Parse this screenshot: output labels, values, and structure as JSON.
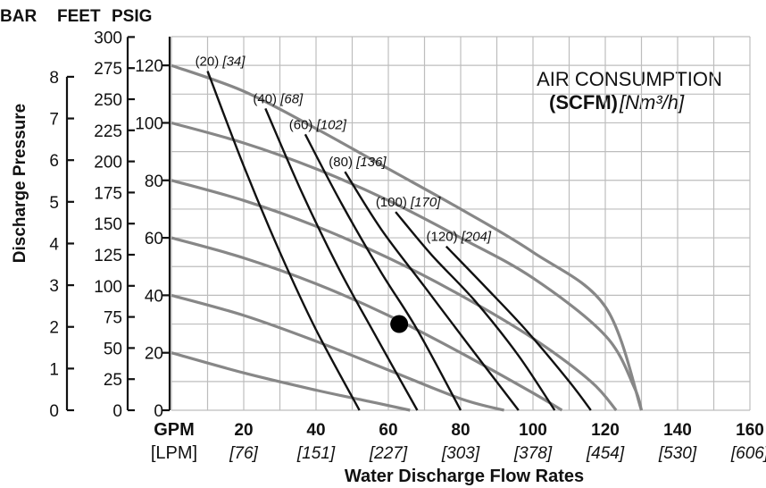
{
  "chart_data": {
    "type": "line",
    "title": "AIR CONSUMPTION",
    "title_units_bold": "(SCFM)",
    "title_units_metric": "[Nm³/h]",
    "xlabel": "Water Discharge Flow Rates",
    "ylabel": "Discharge Pressure",
    "x_unit_primary": "GPM",
    "x_unit_secondary": "[LPM]",
    "axis_headers": {
      "bar": "BAR",
      "feet": "FEET",
      "psig": "PSIG"
    },
    "xlim": [
      0,
      160
    ],
    "ylim_psig": [
      0,
      130
    ],
    "grid": true,
    "x_ticks": [
      {
        "gpm": 20,
        "gpm_label": "20",
        "lpm_label": "[76]"
      },
      {
        "gpm": 40,
        "gpm_label": "40",
        "lpm_label": "[151]"
      },
      {
        "gpm": 60,
        "gpm_label": "60",
        "lpm_label": "[227]"
      },
      {
        "gpm": 80,
        "gpm_label": "80",
        "lpm_label": "[303]"
      },
      {
        "gpm": 100,
        "gpm_label": "100",
        "lpm_label": "[378]"
      },
      {
        "gpm": 120,
        "gpm_label": "120",
        "lpm_label": "[454]"
      },
      {
        "gpm": 140,
        "gpm_label": "140",
        "lpm_label": "[530]"
      },
      {
        "gpm": 160,
        "gpm_label": "160",
        "lpm_label": "[606]"
      }
    ],
    "psig_ticks": [
      "0",
      "20",
      "40",
      "60",
      "80",
      "100",
      "120"
    ],
    "feet_ticks": [
      "0",
      "25",
      "50",
      "75",
      "100",
      "125",
      "150",
      "175",
      "200",
      "225",
      "250",
      "275",
      "300"
    ],
    "bar_ticks": [
      "0",
      "1",
      "2",
      "3",
      "4",
      "5",
      "6",
      "7",
      "8"
    ],
    "performance_curves": [
      {
        "inlet_psig": 20,
        "points": [
          [
            0,
            20
          ],
          [
            20,
            13
          ],
          [
            40,
            7
          ],
          [
            55,
            3
          ],
          [
            66,
            0
          ]
        ]
      },
      {
        "inlet_psig": 40,
        "points": [
          [
            0,
            40
          ],
          [
            20,
            33
          ],
          [
            40,
            24
          ],
          [
            60,
            14
          ],
          [
            80,
            4
          ],
          [
            92,
            0
          ]
        ]
      },
      {
        "inlet_psig": 60,
        "points": [
          [
            0,
            60
          ],
          [
            20,
            53
          ],
          [
            40,
            44
          ],
          [
            60,
            33
          ],
          [
            80,
            20
          ],
          [
            100,
            6
          ],
          [
            108,
            0
          ]
        ]
      },
      {
        "inlet_psig": 80,
        "points": [
          [
            0,
            80
          ],
          [
            20,
            73
          ],
          [
            40,
            64
          ],
          [
            60,
            53
          ],
          [
            80,
            40
          ],
          [
            100,
            25
          ],
          [
            116,
            10
          ],
          [
            123,
            0
          ]
        ]
      },
      {
        "inlet_psig": 100,
        "points": [
          [
            0,
            100
          ],
          [
            20,
            93
          ],
          [
            40,
            84
          ],
          [
            60,
            73
          ],
          [
            80,
            60
          ],
          [
            100,
            46
          ],
          [
            120,
            26
          ],
          [
            128,
            8
          ],
          [
            130,
            0
          ]
        ]
      },
      {
        "inlet_psig": 120,
        "points": [
          [
            0,
            120
          ],
          [
            20,
            111
          ],
          [
            40,
            98
          ],
          [
            60,
            84
          ],
          [
            80,
            70
          ],
          [
            100,
            55
          ],
          [
            120,
            36
          ],
          [
            130,
            0
          ]
        ]
      }
    ],
    "air_consumption_curves": [
      {
        "label": "(20)",
        "label_metric": "[34]",
        "points": [
          [
            10,
            118
          ],
          [
            20,
            85
          ],
          [
            30,
            55
          ],
          [
            40,
            28
          ],
          [
            52,
            0
          ]
        ]
      },
      {
        "label": "(40)",
        "label_metric": "[68]",
        "points": [
          [
            26,
            105
          ],
          [
            36,
            76
          ],
          [
            46,
            50
          ],
          [
            56,
            27
          ],
          [
            68,
            0
          ]
        ]
      },
      {
        "label": "(60)",
        "label_metric": "[102]",
        "points": [
          [
            37,
            96
          ],
          [
            47,
            72
          ],
          [
            58,
            48
          ],
          [
            68,
            28
          ],
          [
            80,
            0
          ]
        ]
      },
      {
        "label": "(80)",
        "label_metric": "[136]",
        "points": [
          [
            48,
            83
          ],
          [
            58,
            63
          ],
          [
            70,
            43
          ],
          [
            82,
            23
          ],
          [
            96,
            0
          ]
        ]
      },
      {
        "label": "(100)",
        "label_metric": "[170]",
        "points": [
          [
            62,
            69
          ],
          [
            72,
            54
          ],
          [
            84,
            38
          ],
          [
            96,
            19
          ],
          [
            106,
            0
          ]
        ]
      },
      {
        "label": "(120)",
        "label_metric": "[204]",
        "points": [
          [
            76,
            57
          ],
          [
            86,
            44
          ],
          [
            98,
            28
          ],
          [
            110,
            10
          ],
          [
            116,
            0
          ]
        ]
      }
    ],
    "marker": {
      "gpm": 63,
      "psig": 30
    }
  }
}
